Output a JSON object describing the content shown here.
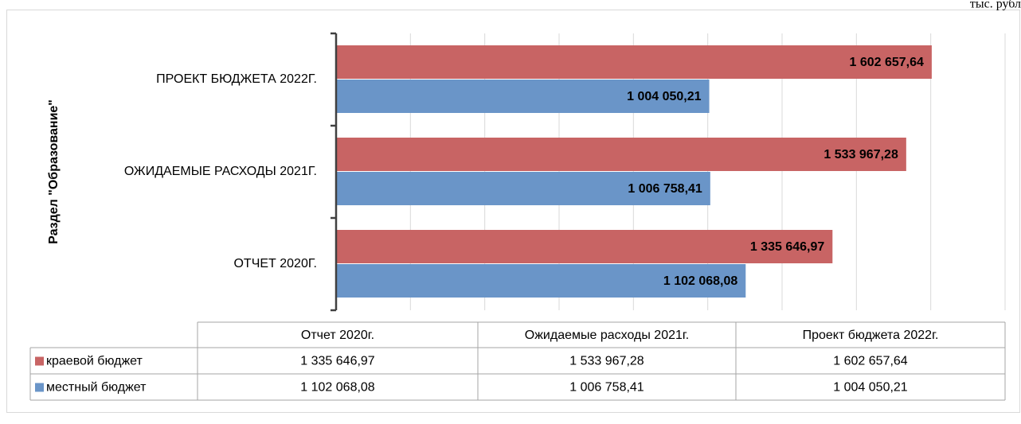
{
  "chart_data": {
    "type": "hbar",
    "unit_note": "тыс. рубл",
    "axis_title": "Раздел \"Образование\"",
    "categories": [
      "ОТЧЕТ 2020Г.",
      "ОЖИДАЕМЫЕ РАСХОДЫ 2021Г.",
      "ПРОЕКТ БЮДЖЕТА 2022Г."
    ],
    "table_header": [
      "Отчет 2020г.",
      "Ожидаемые расходы 2021г.",
      "Проект бюджета 2022г."
    ],
    "series": [
      {
        "name": "краевой бюджет",
        "color": "#c86464",
        "values": [
          1335646.97,
          1533967.28,
          1602657.64
        ],
        "value_labels": [
          "1 335 646,97",
          "1 533 967,28",
          "1 602 657,64"
        ]
      },
      {
        "name": "местный бюджет",
        "color": "#6a95c8",
        "values": [
          1102068.08,
          1006758.41,
          1004050.21
        ],
        "value_labels": [
          "1 102 068,08",
          "1 006 758,41",
          "1 004 050,21"
        ]
      }
    ],
    "xlim": [
      0,
      1800000
    ],
    "xticks": [
      0,
      200000,
      400000,
      600000,
      800000,
      1000000,
      1200000,
      1400000,
      1600000,
      1800000
    ],
    "grid": true
  }
}
